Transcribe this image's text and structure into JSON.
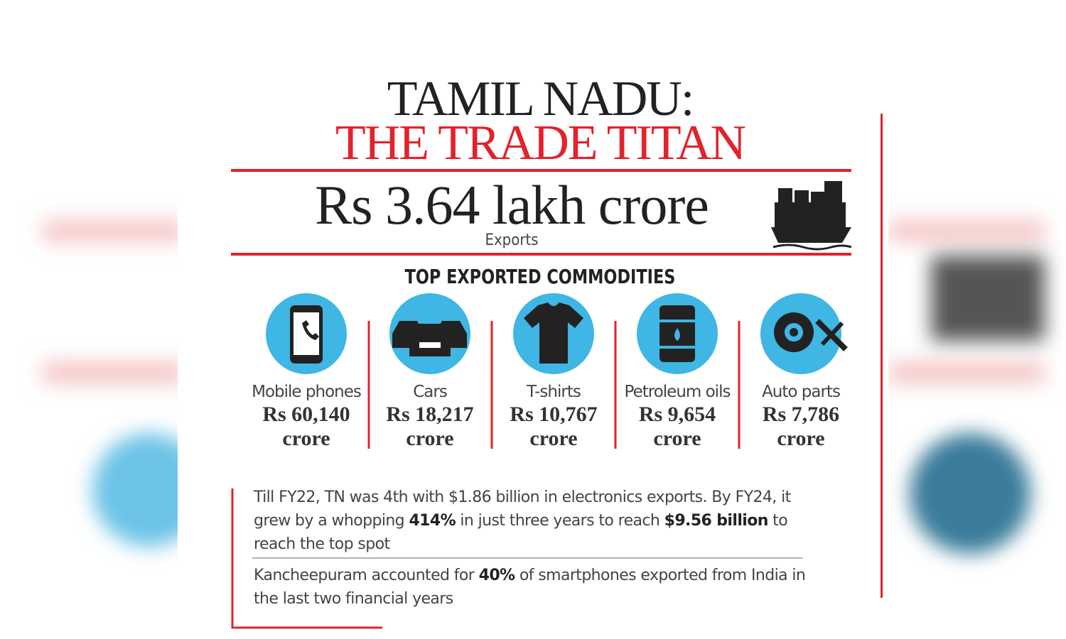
{
  "header": {
    "title_line1": "TAMIL NADU:",
    "title_line2": "THE TRADE TITAN"
  },
  "headline": {
    "value": "Rs 3.64 lakh crore",
    "label": "Exports"
  },
  "section_title": "TOP EXPORTED COMMODITIES",
  "commodities": [
    {
      "name": "Mobile phones",
      "value": "Rs 60,140 crore"
    },
    {
      "name": "Cars",
      "value": "Rs 18,217 crore"
    },
    {
      "name": "T-shirts",
      "value": "Rs 10,767 crore"
    },
    {
      "name": "Petroleum oils",
      "value": "Rs 9,654 crore"
    },
    {
      "name": "Auto parts",
      "value": "Rs 7,786 crore"
    }
  ],
  "notes": [
    {
      "segments": [
        {
          "text": "Till FY22, TN was 4th with $1.86 billion in electronics exports. By FY24, it grew by a whopping ",
          "bold": false
        },
        {
          "text": "414%",
          "bold": true
        },
        {
          "text": " in just three years to reach ",
          "bold": false
        },
        {
          "text": "$9.56 billion",
          "bold": true
        },
        {
          "text": " to reach the top spot",
          "bold": false
        }
      ]
    },
    {
      "segments": [
        {
          "text": "Kancheepuram accounted for ",
          "bold": false
        },
        {
          "text": "40%",
          "bold": true
        },
        {
          "text": " of smartphones exported from India in the last two financial years",
          "bold": false
        }
      ]
    }
  ]
}
